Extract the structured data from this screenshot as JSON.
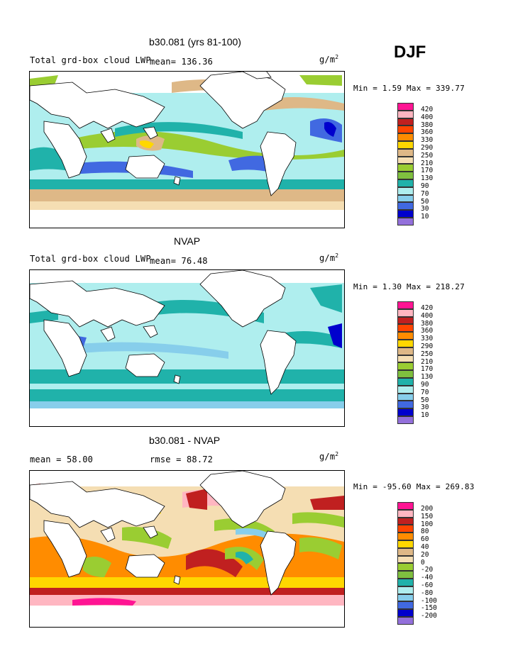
{
  "season": "DJF",
  "panels": [
    {
      "title": "b30.081 (yrs 81-100)",
      "left_text": "Total grd-box cloud LWP",
      "stat_text": "mean=  136.36",
      "rmse_text": "",
      "unit_base": "g/m",
      "unit_exp": "2",
      "minmax": "Min =    1.59 Max = 339.77",
      "legend": [
        "420",
        "400",
        "380",
        "360",
        "330",
        "290",
        "250",
        "210",
        "170",
        "130",
        "90",
        "70",
        "50",
        "30",
        "10"
      ]
    },
    {
      "title": "NVAP",
      "left_text": "Total grd-box cloud LWP",
      "stat_text": "mean=  76.48",
      "rmse_text": "",
      "unit_base": "g/m",
      "unit_exp": "2",
      "minmax": "Min =    1.30 Max = 218.27",
      "legend": [
        "420",
        "400",
        "380",
        "360",
        "330",
        "290",
        "250",
        "210",
        "170",
        "130",
        "90",
        "70",
        "50",
        "30",
        "10"
      ]
    },
    {
      "title": "b30.081 - NVAP",
      "left_text": "mean =  58.00",
      "stat_text": "",
      "rmse_text": "rmse =  88.72",
      "unit_base": "g/m",
      "unit_exp": "2",
      "minmax": "Min = -95.60 Max = 269.83",
      "legend": [
        "200",
        "150",
        "100",
        "80",
        "60",
        "40",
        "20",
        "0",
        "-20",
        "-40",
        "-60",
        "-80",
        "-100",
        "-150",
        "-200"
      ]
    }
  ],
  "colors": {
    "scale": [
      "#ff1493",
      "#ffb6c1",
      "#c02020",
      "#ff4500",
      "#ff8c00",
      "#ffd700",
      "#deb887",
      "#f5deb3",
      "#9acd32",
      "#7fbf3f",
      "#20b2aa",
      "#afeeee",
      "#87ceeb",
      "#4169e1",
      "#0000cd",
      "#9370db"
    ]
  }
}
